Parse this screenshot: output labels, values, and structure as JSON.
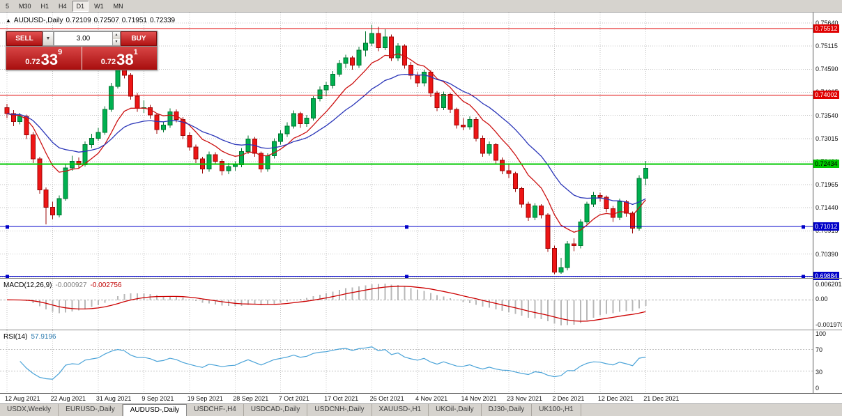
{
  "toolbar": {
    "timeframes": [
      "5",
      "M30",
      "H1",
      "H4",
      "D1",
      "W1",
      "MN"
    ],
    "active": "D1"
  },
  "quote": {
    "collapse_arrow": "▲",
    "symbol": "AUDUSD-,Daily",
    "open": "0.72109",
    "high": "0.72507",
    "low": "0.71951",
    "close": "0.72339"
  },
  "trade_panel": {
    "sell_label": "SELL",
    "buy_label": "BUY",
    "dropdown_arrow": "▼",
    "volume": "3.00",
    "spin_up": "▲",
    "spin_down": "▼",
    "sell_price_small": "0.72",
    "sell_price_big": "33",
    "sell_price_sup": "9",
    "buy_price_small": "0.72",
    "buy_price_big": "38",
    "buy_price_sup": "1"
  },
  "macd_panel": {
    "label": "MACD(12,26,9)",
    "value_main": "-0.000927",
    "value_signal": "-0.002756",
    "axis_labels": [
      "0.006201",
      "0.00",
      "-0.001970"
    ]
  },
  "rsi_panel": {
    "label": "RSI(14)",
    "value": "57.9196",
    "axis_labels": [
      "100",
      "70",
      "30",
      "0"
    ]
  },
  "tabs": {
    "items": [
      "USDX,Weekly",
      "EURUSD-,Daily",
      "AUDUSD-,Daily",
      "USDCHF-,H4",
      "USDCAD-,Daily",
      "USDCNH-,Daily",
      "XAUUSD-,H1",
      "UKOil-,Daily",
      "DJ30-,Daily",
      "UK100-,H1"
    ],
    "active_index": 2
  },
  "colors": {
    "candle_up_fill": "#00b050",
    "candle_up_stroke": "#00742f",
    "candle_down_fill": "#ee1515",
    "candle_down_stroke": "#9d0808",
    "grid": "#c6c6c6",
    "ma_fast": "#cc1111",
    "ma_slow": "#2a35b8",
    "macd_histogram": "#b8b8b8",
    "macd_signal": "#cc0000",
    "rsi_line": "#4aa3d8"
  },
  "chart_data": {
    "type": "candlestick",
    "symbol": "AUDUSD-,Daily",
    "price_range": {
      "top": 0.75878,
      "bottom": 0.69828
    },
    "y_ticks": [
      "0.75640",
      "0.75115",
      "0.74590",
      "0.74065",
      "0.73540",
      "0.73015",
      "0.72490",
      "0.71965",
      "0.71440",
      "0.70915",
      "0.70390",
      "0.69865"
    ],
    "x_dates": [
      "12 Aug 2021",
      "22 Aug 2021",
      "31 Aug 2021",
      "9 Sep 2021",
      "19 Sep 2021",
      "28 Sep 2021",
      "7 Oct 2021",
      "17 Oct 2021",
      "26 Oct 2021",
      "4 Nov 2021",
      "14 Nov 2021",
      "23 Nov 2021",
      "2 Dec 2021",
      "12 Dec 2021",
      "21 Dec 2021"
    ],
    "x_tick_every": 7,
    "candles": [
      [
        0.7372,
        0.738,
        0.7348,
        0.7358
      ],
      [
        0.7358,
        0.7366,
        0.733,
        0.734
      ],
      [
        0.734,
        0.736,
        0.7334,
        0.7352
      ],
      [
        0.7352,
        0.7356,
        0.73,
        0.731
      ],
      [
        0.731,
        0.7316,
        0.7246,
        0.7255
      ],
      [
        0.7255,
        0.726,
        0.7176,
        0.7185
      ],
      [
        0.7185,
        0.719,
        0.7106,
        0.7145
      ],
      [
        0.7145,
        0.7158,
        0.7118,
        0.7128
      ],
      [
        0.7128,
        0.7172,
        0.7122,
        0.7165
      ],
      [
        0.7165,
        0.7242,
        0.716,
        0.7235
      ],
      [
        0.7235,
        0.7262,
        0.7228,
        0.725
      ],
      [
        0.725,
        0.7258,
        0.7232,
        0.7242
      ],
      [
        0.7242,
        0.7295,
        0.7238,
        0.7288
      ],
      [
        0.7288,
        0.7312,
        0.728,
        0.7302
      ],
      [
        0.7302,
        0.7326,
        0.7296,
        0.7315
      ],
      [
        0.7315,
        0.7375,
        0.731,
        0.7368
      ],
      [
        0.7368,
        0.7428,
        0.7362,
        0.742
      ],
      [
        0.742,
        0.7478,
        0.7415,
        0.7458
      ],
      [
        0.7458,
        0.7468,
        0.7438,
        0.7445
      ],
      [
        0.7445,
        0.745,
        0.739,
        0.7398
      ],
      [
        0.7398,
        0.7405,
        0.7362,
        0.737
      ],
      [
        0.737,
        0.7388,
        0.736,
        0.7372
      ],
      [
        0.7372,
        0.7378,
        0.7346,
        0.7355
      ],
      [
        0.7355,
        0.736,
        0.7312,
        0.7322
      ],
      [
        0.7322,
        0.734,
        0.7315,
        0.7332
      ],
      [
        0.7332,
        0.737,
        0.7326,
        0.7362
      ],
      [
        0.7362,
        0.7368,
        0.7338,
        0.7345
      ],
      [
        0.7345,
        0.735,
        0.73,
        0.7308
      ],
      [
        0.7308,
        0.7315,
        0.7274,
        0.7282
      ],
      [
        0.7282,
        0.7288,
        0.7246,
        0.7255
      ],
      [
        0.7255,
        0.726,
        0.7222,
        0.7232
      ],
      [
        0.7232,
        0.7272,
        0.7226,
        0.7265
      ],
      [
        0.7265,
        0.727,
        0.7242,
        0.725
      ],
      [
        0.725,
        0.7255,
        0.7218,
        0.7228
      ],
      [
        0.7228,
        0.7246,
        0.722,
        0.7238
      ],
      [
        0.7238,
        0.725,
        0.7228,
        0.7242
      ],
      [
        0.7242,
        0.728,
        0.7236,
        0.7272
      ],
      [
        0.7272,
        0.7308,
        0.7266,
        0.73
      ],
      [
        0.73,
        0.7305,
        0.726,
        0.7268
      ],
      [
        0.7268,
        0.7272,
        0.7224,
        0.7232
      ],
      [
        0.7232,
        0.7268,
        0.7226,
        0.7262
      ],
      [
        0.7262,
        0.7302,
        0.7256,
        0.7295
      ],
      [
        0.7295,
        0.732,
        0.7288,
        0.7312
      ],
      [
        0.7312,
        0.7338,
        0.7305,
        0.733
      ],
      [
        0.733,
        0.7365,
        0.7324,
        0.7358
      ],
      [
        0.7358,
        0.7362,
        0.7326,
        0.7335
      ],
      [
        0.7335,
        0.7355,
        0.7328,
        0.7348
      ],
      [
        0.7348,
        0.7398,
        0.7342,
        0.7392
      ],
      [
        0.7392,
        0.742,
        0.7386,
        0.7412
      ],
      [
        0.7412,
        0.743,
        0.7398,
        0.7422
      ],
      [
        0.7422,
        0.7455,
        0.7415,
        0.7448
      ],
      [
        0.7448,
        0.748,
        0.7442,
        0.7472
      ],
      [
        0.7472,
        0.7492,
        0.7462,
        0.7485
      ],
      [
        0.7485,
        0.749,
        0.7458,
        0.7468
      ],
      [
        0.7468,
        0.751,
        0.7462,
        0.7502
      ],
      [
        0.7502,
        0.7545,
        0.7488,
        0.7518
      ],
      [
        0.7518,
        0.756,
        0.7512,
        0.754
      ],
      [
        0.754,
        0.7555,
        0.75,
        0.7508
      ],
      [
        0.7508,
        0.755,
        0.7502,
        0.7532
      ],
      [
        0.7532,
        0.7538,
        0.7478,
        0.7485
      ],
      [
        0.7485,
        0.7518,
        0.7478,
        0.7512
      ],
      [
        0.7512,
        0.7516,
        0.746,
        0.7468
      ],
      [
        0.7468,
        0.7475,
        0.7436,
        0.7445
      ],
      [
        0.7445,
        0.7452,
        0.7418,
        0.7428
      ],
      [
        0.7428,
        0.7458,
        0.742,
        0.7452
      ],
      [
        0.7452,
        0.7456,
        0.7396,
        0.7405
      ],
      [
        0.7405,
        0.741,
        0.7364,
        0.7372
      ],
      [
        0.7372,
        0.7408,
        0.7366,
        0.7402
      ],
      [
        0.7402,
        0.7406,
        0.736,
        0.7368
      ],
      [
        0.7368,
        0.7372,
        0.7324,
        0.7332
      ],
      [
        0.7332,
        0.7348,
        0.732,
        0.7328
      ],
      [
        0.7328,
        0.7352,
        0.7322,
        0.7345
      ],
      [
        0.7345,
        0.735,
        0.7295,
        0.7302
      ],
      [
        0.7302,
        0.7308,
        0.726,
        0.7268
      ],
      [
        0.7268,
        0.7295,
        0.7262,
        0.7288
      ],
      [
        0.7288,
        0.7292,
        0.7244,
        0.7252
      ],
      [
        0.7252,
        0.7258,
        0.722,
        0.7228
      ],
      [
        0.7228,
        0.7242,
        0.7212,
        0.7222
      ],
      [
        0.7222,
        0.7226,
        0.718,
        0.7188
      ],
      [
        0.7188,
        0.7192,
        0.7144,
        0.7152
      ],
      [
        0.7152,
        0.7158,
        0.7114,
        0.7122
      ],
      [
        0.7122,
        0.7155,
        0.7116,
        0.7148
      ],
      [
        0.7148,
        0.7152,
        0.712,
        0.7128
      ],
      [
        0.7128,
        0.7132,
        0.7044,
        0.7052
      ],
      [
        0.7052,
        0.7058,
        0.6993,
        0.6998
      ],
      [
        0.6998,
        0.703,
        0.6994,
        0.7008
      ],
      [
        0.7008,
        0.7068,
        0.7002,
        0.7062
      ],
      [
        0.7062,
        0.7075,
        0.7045,
        0.7058
      ],
      [
        0.7058,
        0.7118,
        0.7052,
        0.7112
      ],
      [
        0.7112,
        0.7158,
        0.7106,
        0.7152
      ],
      [
        0.7152,
        0.718,
        0.7146,
        0.7172
      ],
      [
        0.7172,
        0.7178,
        0.7158,
        0.7168
      ],
      [
        0.7168,
        0.7172,
        0.7134,
        0.7142
      ],
      [
        0.7142,
        0.7148,
        0.7112,
        0.7122
      ],
      [
        0.7122,
        0.7165,
        0.7116,
        0.7158
      ],
      [
        0.7158,
        0.7162,
        0.7124,
        0.7132
      ],
      [
        0.7132,
        0.7136,
        0.7086,
        0.7098
      ],
      [
        0.7098,
        0.7218,
        0.7092,
        0.7211
      ],
      [
        0.72109,
        0.72507,
        0.71951,
        0.72339
      ]
    ],
    "h_lines": [
      {
        "price": 0.75512,
        "label": "0.75512",
        "color": "#e00000",
        "width": 1,
        "badge": "red",
        "handles": false
      },
      {
        "price": 0.74002,
        "label": "0.74002",
        "color": "#e00000",
        "width": 1,
        "badge": "red",
        "handles": false
      },
      {
        "price": 0.72434,
        "label": "0.72434",
        "color": "#00c800",
        "width": 2,
        "badge": "green",
        "handles": false
      },
      {
        "price": 0.71012,
        "label": "0.71012",
        "color": "#0000c8",
        "width": 1,
        "badge": "blue",
        "handles": true
      },
      {
        "price": 0.69884,
        "label": "0.69884",
        "color": "#0000c8",
        "width": 1,
        "badge": "blue",
        "handles": true
      }
    ],
    "moving_averages": [
      {
        "name": "fast-ma",
        "period": 9
      },
      {
        "name": "slow-ma",
        "period": 20
      }
    ],
    "indicators": {
      "macd": {
        "fast": 12,
        "slow": 26,
        "signal": 9
      },
      "rsi": {
        "period": 14,
        "levels": [
          70,
          30
        ]
      }
    }
  }
}
